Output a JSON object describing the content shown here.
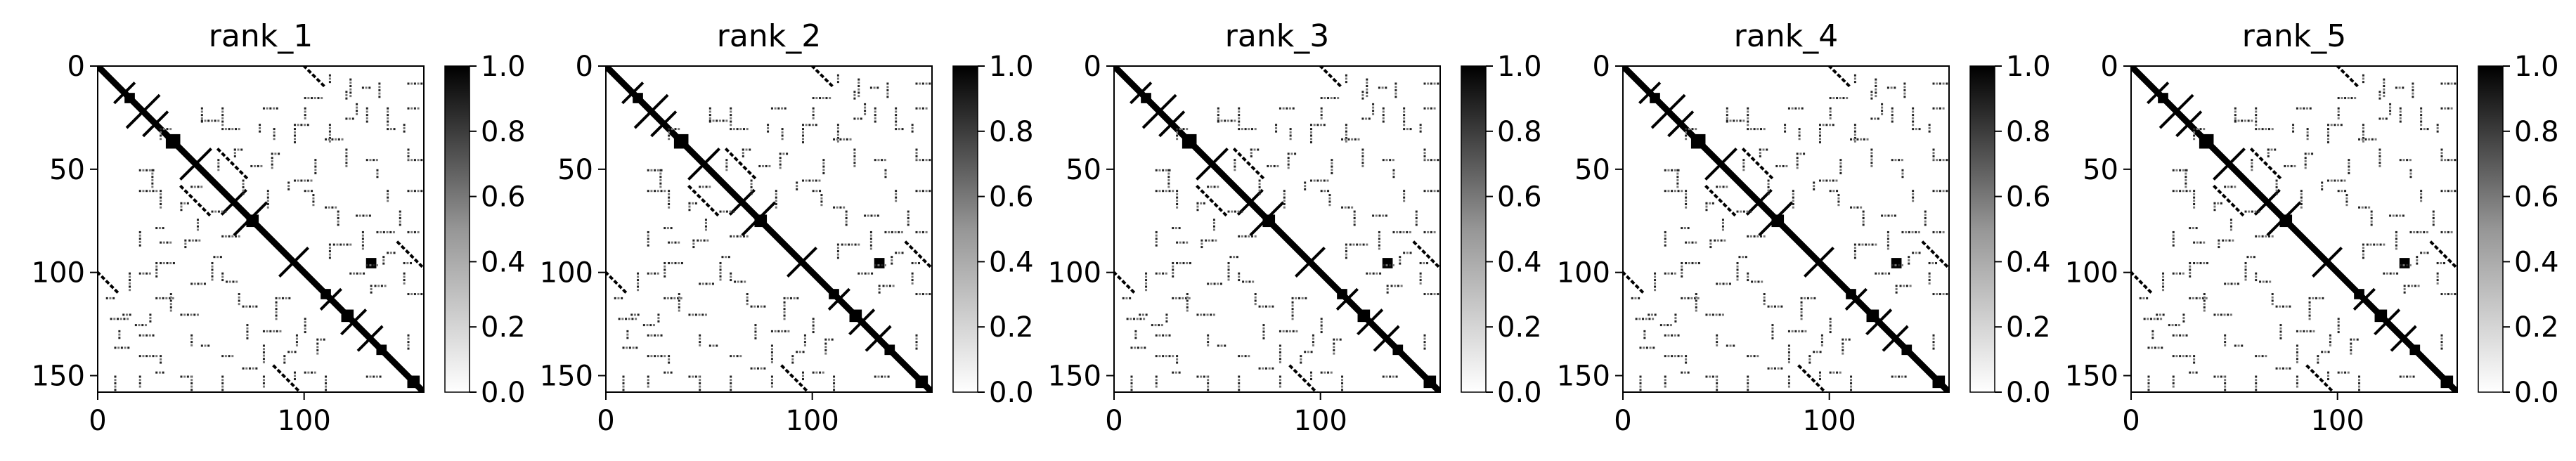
{
  "chart_data": [
    {
      "type": "heatmap",
      "title": "rank_1",
      "matrix_size": 158,
      "xlim": [
        0,
        158
      ],
      "ylim": [
        158,
        0
      ],
      "xticks": [
        0,
        100
      ],
      "yticks": [
        0,
        50,
        100,
        150
      ],
      "colorbar": {
        "range": [
          0.0,
          1.0
        ],
        "ticks": [
          "0.0",
          "0.2",
          "0.4",
          "0.6",
          "0.8",
          "1.0"
        ],
        "colormap": "Greys"
      },
      "grid": false
    },
    {
      "type": "heatmap",
      "title": "rank_2",
      "matrix_size": 158,
      "xlim": [
        0,
        158
      ],
      "ylim": [
        158,
        0
      ],
      "xticks": [
        0,
        100
      ],
      "yticks": [
        0,
        50,
        100,
        150
      ],
      "colorbar": {
        "range": [
          0.0,
          1.0
        ],
        "ticks": [
          "0.0",
          "0.2",
          "0.4",
          "0.6",
          "0.8",
          "1.0"
        ],
        "colormap": "Greys"
      },
      "grid": false
    },
    {
      "type": "heatmap",
      "title": "rank_3",
      "matrix_size": 158,
      "xlim": [
        0,
        158
      ],
      "ylim": [
        158,
        0
      ],
      "xticks": [
        0,
        100
      ],
      "yticks": [
        0,
        50,
        100,
        150
      ],
      "colorbar": {
        "range": [
          0.0,
          1.0
        ],
        "ticks": [
          "0.0",
          "0.2",
          "0.4",
          "0.6",
          "0.8",
          "1.0"
        ],
        "colormap": "Greys"
      },
      "grid": false
    },
    {
      "type": "heatmap",
      "title": "rank_4",
      "matrix_size": 158,
      "xlim": [
        0,
        158
      ],
      "ylim": [
        158,
        0
      ],
      "xticks": [
        0,
        100
      ],
      "yticks": [
        0,
        50,
        100,
        150
      ],
      "colorbar": {
        "range": [
          0.0,
          1.0
        ],
        "ticks": [
          "0.0",
          "0.2",
          "0.4",
          "0.6",
          "0.8",
          "1.0"
        ],
        "colormap": "Greys"
      },
      "grid": false
    },
    {
      "type": "heatmap",
      "title": "rank_5",
      "matrix_size": 158,
      "xlim": [
        0,
        158
      ],
      "ylim": [
        158,
        0
      ],
      "xticks": [
        0,
        100
      ],
      "yticks": [
        0,
        50,
        100,
        150
      ],
      "colorbar": {
        "range": [
          0.0,
          1.0
        ],
        "ticks": [
          "0.0",
          "0.2",
          "0.4",
          "0.6",
          "0.8",
          "1.0"
        ],
        "colormap": "Greys"
      },
      "grid": false
    }
  ],
  "contacts": {
    "diagonal": [
      [
        0,
        158
      ]
    ],
    "antidiagonal_bands": [
      [
        14,
        30
      ],
      [
        22,
        34
      ],
      [
        8,
        18
      ],
      [
        40,
        55
      ],
      [
        60,
        72
      ],
      [
        66,
        82
      ],
      [
        88,
        102
      ],
      [
        108,
        118
      ],
      [
        126,
        138
      ],
      [
        118,
        130
      ]
    ],
    "parallel_bands": [
      [
        -120,
        0,
        38
      ],
      [
        -100,
        52,
        110
      ],
      [
        18,
        40,
        55
      ],
      [
        -58,
        0,
        12
      ],
      [
        60,
        85,
        110
      ]
    ],
    "blocks": [
      [
        13,
        18,
        13,
        18
      ],
      [
        33,
        40,
        33,
        40
      ],
      [
        118,
        124,
        118,
        124
      ],
      [
        130,
        135,
        93,
        98
      ],
      [
        72,
        78,
        72,
        78
      ],
      [
        108,
        113,
        108,
        113
      ],
      [
        135,
        140,
        135,
        140
      ],
      [
        150,
        156,
        150,
        156
      ]
    ],
    "scatter": [
      [
        78,
        28
      ],
      [
        85,
        30
      ],
      [
        95,
        30
      ],
      [
        112,
        28
      ],
      [
        120,
        12
      ],
      [
        125,
        18
      ],
      [
        130,
        20
      ],
      [
        60,
        20
      ],
      [
        66,
        40
      ],
      [
        100,
        20
      ],
      [
        105,
        45
      ],
      [
        120,
        40
      ],
      [
        135,
        50
      ],
      [
        140,
        60
      ],
      [
        146,
        70
      ],
      [
        55,
        95
      ],
      [
        60,
        100
      ],
      [
        68,
        110
      ],
      [
        72,
        125
      ],
      [
        80,
        135
      ],
      [
        90,
        140
      ],
      [
        96,
        130
      ],
      [
        100,
        122
      ],
      [
        30,
        60
      ],
      [
        40,
        66
      ],
      [
        48,
        74
      ],
      [
        28,
        95
      ],
      [
        35,
        110
      ],
      [
        25,
        120
      ],
      [
        45,
        130
      ],
      [
        20,
        80
      ],
      [
        15,
        100
      ],
      [
        10,
        128
      ],
      [
        58,
        45
      ],
      [
        70,
        55
      ],
      [
        82,
        60
      ],
      [
        92,
        56
      ],
      [
        104,
        62
      ],
      [
        116,
        70
      ],
      [
        128,
        80
      ],
      [
        138,
        92
      ],
      [
        148,
        100
      ],
      [
        150,
        130
      ],
      [
        110,
        150
      ],
      [
        95,
        148
      ],
      [
        80,
        150
      ],
      [
        60,
        150
      ],
      [
        45,
        150
      ],
      [
        30,
        140
      ],
      [
        20,
        150
      ],
      [
        8,
        150
      ],
      [
        140,
        20
      ],
      [
        148,
        28
      ],
      [
        150,
        40
      ],
      [
        136,
        8
      ],
      [
        122,
        6
      ],
      [
        112,
        4
      ],
      [
        30,
        30
      ],
      [
        50,
        20
      ],
      [
        26,
        50
      ],
      [
        42,
        84
      ],
      [
        84,
        44
      ],
      [
        112,
        86
      ],
      [
        86,
        114
      ],
      [
        132,
        106
      ],
      [
        106,
        134
      ]
    ]
  }
}
